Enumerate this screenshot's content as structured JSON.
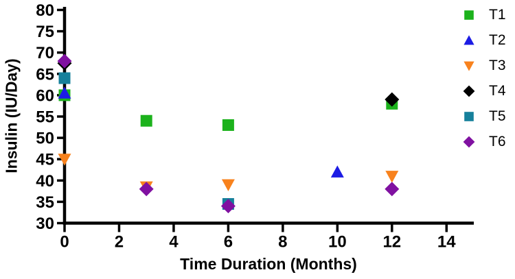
{
  "figure": {
    "background": "#ffffff",
    "axis_color": "#000000"
  },
  "chart_data": {
    "type": "scatter",
    "title": "",
    "xlabel": "Time Duration (Months)",
    "ylabel": "Insulin (IU/Day)",
    "xlim": [
      0,
      15
    ],
    "ylim": [
      30,
      80
    ],
    "xticks": [
      0,
      2,
      4,
      6,
      8,
      10,
      12,
      14
    ],
    "yticks": [
      30,
      35,
      40,
      45,
      50,
      55,
      60,
      65,
      70,
      75,
      80
    ],
    "grid": false,
    "legend_position": "right-outside",
    "series": [
      {
        "name": "T1",
        "marker": "square",
        "color": "#1CB21C",
        "points": [
          [
            0,
            60
          ],
          [
            3,
            54
          ],
          [
            6,
            53
          ],
          [
            12,
            58
          ]
        ]
      },
      {
        "name": "T2",
        "marker": "triangle-up",
        "color": "#1C1CE4",
        "points": [
          [
            0,
            60.5
          ],
          [
            10,
            42
          ]
        ]
      },
      {
        "name": "T3",
        "marker": "triangle-down",
        "color": "#F8821D",
        "points": [
          [
            0,
            45
          ],
          [
            3,
            38.5
          ],
          [
            6,
            39
          ],
          [
            12,
            41
          ]
        ]
      },
      {
        "name": "T4",
        "marker": "diamond",
        "color": "#000000",
        "points": [
          [
            0,
            67.5
          ],
          [
            12,
            59
          ]
        ]
      },
      {
        "name": "T5",
        "marker": "square",
        "color": "#16809B",
        "points": [
          [
            0,
            64
          ],
          [
            6,
            34.5
          ]
        ]
      },
      {
        "name": "T6",
        "marker": "diamond",
        "color": "#8011A1",
        "points": [
          [
            0,
            68
          ],
          [
            3,
            38
          ],
          [
            6,
            34
          ],
          [
            12,
            38
          ]
        ]
      }
    ]
  }
}
